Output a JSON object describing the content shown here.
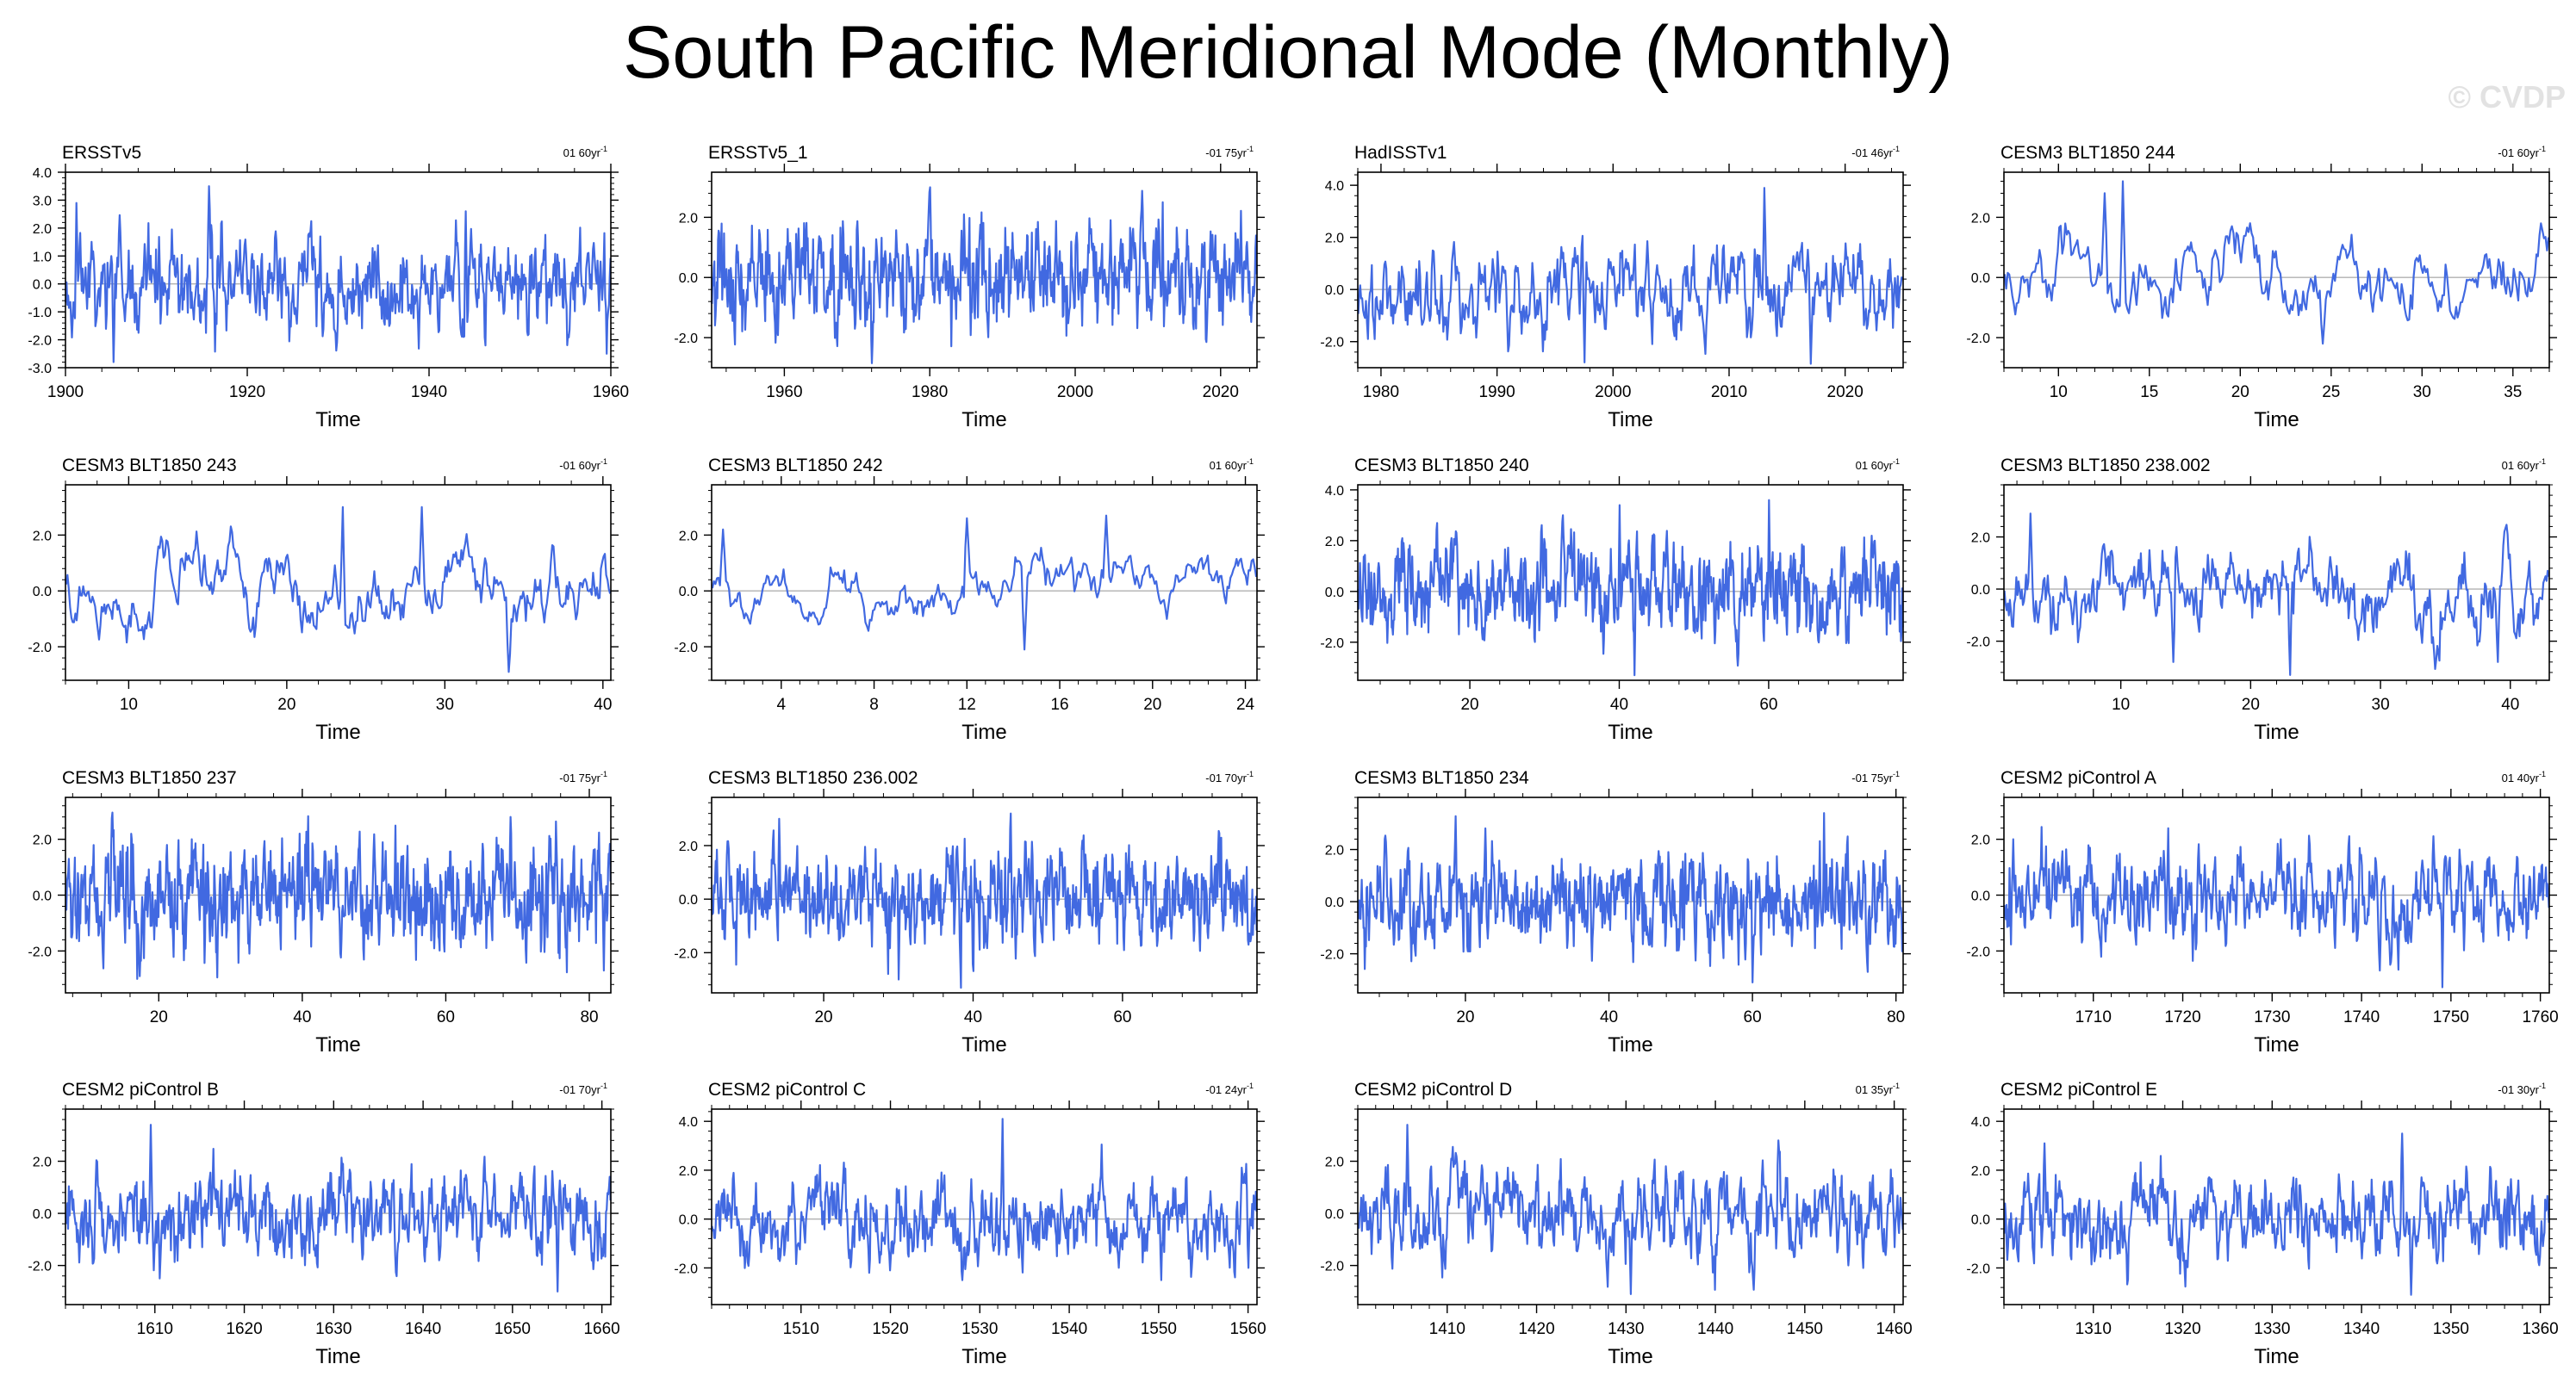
{
  "title": "South Pacific Meridional Mode (Monthly)",
  "watermark": "© CVDP",
  "colors": {
    "line": "#4169e1",
    "axis": "#000000",
    "zero_line": "#b0b0b0",
    "background": "#ffffff"
  },
  "chart_data": [
    {
      "type": "line",
      "name": "ERSSTv5",
      "trend": "01 60yr",
      "xlabel": "Time",
      "xlim": [
        1900,
        1960
      ],
      "xticks": [
        1900,
        1920,
        1940,
        1960
      ],
      "xtick_labels": [
        "1900",
        "1920",
        "1940",
        "1960"
      ],
      "ylim": [
        -3.0,
        4.0
      ],
      "yticks": [
        -3,
        -2,
        -1,
        0,
        1,
        2,
        3,
        4
      ],
      "ytick_labels": [
        "-3.0",
        "-2.0",
        "-1.0",
        "0.0",
        "1.0",
        "2.0",
        "3.0",
        "4.0"
      ],
      "seed": 11,
      "corr": 0.6,
      "amp": 0.85,
      "anchors": [
        [
          1901.2,
          2.9
        ],
        [
          1905.3,
          -2.8
        ],
        [
          1915.8,
          3.5
        ],
        [
          1928,
          1.7
        ],
        [
          1944,
          2.6
        ],
        [
          1959.5,
          -2.5
        ]
      ]
    },
    {
      "type": "line",
      "name": "ERSSTv5_1",
      "trend": "-01 75yr",
      "xlabel": "Time",
      "xlim": [
        1950,
        2025
      ],
      "xticks": [
        1960,
        1980,
        2000,
        2020
      ],
      "xtick_labels": [
        "1960",
        "1980",
        "2000",
        "2020"
      ],
      "ylim": [
        -3.0,
        3.5
      ],
      "yticks": [
        -2,
        0,
        2
      ],
      "ytick_labels": [
        "-2.0",
        "0.0",
        "2.0"
      ],
      "seed": 12,
      "corr": 0.6,
      "amp": 0.9,
      "anchors": [
        [
          1972,
          -3.0
        ],
        [
          1980,
          3.0
        ],
        [
          2012,
          2.5
        ]
      ]
    },
    {
      "type": "line",
      "name": "HadISSTv1",
      "trend": "-01 46yr",
      "xlabel": "Time",
      "xlim": [
        1978,
        2025
      ],
      "xticks": [
        1980,
        1990,
        2000,
        2010,
        2020
      ],
      "xtick_labels": [
        "1980",
        "1990",
        "2000",
        "2010",
        "2020"
      ],
      "ylim": [
        -3.0,
        4.5
      ],
      "yticks": [
        -2,
        0,
        2,
        4
      ],
      "ytick_labels": [
        "-2.0",
        "0.0",
        "2.0",
        "4.0"
      ],
      "seed": 13,
      "corr": 0.7,
      "amp": 0.9,
      "anchors": [
        [
          1997.5,
          -2.8
        ],
        [
          2013,
          3.9
        ],
        [
          2017,
          -2.9
        ]
      ]
    },
    {
      "type": "line",
      "name": "CESM3 BLT1850 244",
      "trend": "-01 60yr",
      "xlabel": "Time",
      "xlim": [
        7,
        37
      ],
      "xticks": [
        10,
        15,
        20,
        25,
        30,
        35
      ],
      "xtick_labels": [
        "10",
        "15",
        "20",
        "25",
        "30",
        "35"
      ],
      "ylim": [
        -3.0,
        3.5
      ],
      "yticks": [
        -2,
        0,
        2
      ],
      "ytick_labels": [
        "-2.0",
        "0.0",
        "2.0"
      ],
      "seed": 14,
      "corr": 0.88,
      "amp": 0.8,
      "anchors": [
        [
          12.5,
          2.8
        ],
        [
          13.5,
          3.2
        ],
        [
          24.5,
          -2.2
        ],
        [
          36.5,
          1.8
        ]
      ]
    },
    {
      "type": "line",
      "name": "CESM3 BLT1850 243",
      "trend": "-01 60yr",
      "xlabel": "Time",
      "xlim": [
        6,
        40.5
      ],
      "xticks": [
        10,
        20,
        30,
        40
      ],
      "xtick_labels": [
        "10",
        "20",
        "30",
        "40"
      ],
      "ylim": [
        -3.2,
        3.8
      ],
      "yticks": [
        -2,
        0,
        2
      ],
      "ytick_labels": [
        "-2.0",
        "0.0",
        "2.0"
      ],
      "seed": 21,
      "corr": 0.88,
      "amp": 0.8,
      "anchors": [
        [
          23.5,
          3.0
        ],
        [
          28.5,
          3.0
        ],
        [
          34,
          -2.9
        ]
      ]
    },
    {
      "type": "line",
      "name": "CESM3 BLT1850 242",
      "trend": "01 60yr",
      "xlabel": "Time",
      "xlim": [
        1,
        24.5
      ],
      "xticks": [
        4,
        8,
        12,
        16,
        20,
        24
      ],
      "xtick_labels": [
        "4",
        "8",
        "12",
        "16",
        "20",
        "24"
      ],
      "ylim": [
        -3.2,
        3.8
      ],
      "yticks": [
        -2,
        0,
        2
      ],
      "ytick_labels": [
        "-2.0",
        "0.0",
        "2.0"
      ],
      "seed": 22,
      "corr": 0.93,
      "amp": 0.7,
      "anchors": [
        [
          1.5,
          2.2
        ],
        [
          12,
          2.6
        ],
        [
          18,
          2.7
        ],
        [
          14.5,
          -2.1
        ]
      ]
    },
    {
      "type": "line",
      "name": "CESM3 BLT1850 240",
      "trend": "01 60yr",
      "xlabel": "Time",
      "xlim": [
        5,
        78
      ],
      "xticks": [
        20,
        40,
        60
      ],
      "xtick_labels": [
        "20",
        "40",
        "60"
      ],
      "ylim": [
        -3.5,
        4.2
      ],
      "yticks": [
        -2,
        0,
        2,
        4
      ],
      "ytick_labels": [
        "-2.0",
        "0.0",
        "2.0",
        "4.0"
      ],
      "seed": 23,
      "corr": 0.6,
      "amp": 0.95,
      "anchors": [
        [
          40,
          3.4
        ],
        [
          42,
          -3.3
        ],
        [
          60,
          3.6
        ]
      ]
    },
    {
      "type": "line",
      "name": "CESM3 BLT1850 238.002",
      "trend": "01 60yr",
      "xlabel": "Time",
      "xlim": [
        1,
        43
      ],
      "xticks": [
        10,
        20,
        30,
        40
      ],
      "xtick_labels": [
        "10",
        "20",
        "30",
        "40"
      ],
      "ylim": [
        -3.5,
        4.0
      ],
      "yticks": [
        -2,
        0,
        2
      ],
      "ytick_labels": [
        "-2.0",
        "0.0",
        "2.0"
      ],
      "seed": 24,
      "corr": 0.75,
      "amp": 0.85,
      "anchors": [
        [
          3,
          2.9
        ],
        [
          14,
          -2.8
        ],
        [
          23,
          -3.3
        ],
        [
          39,
          -2.8
        ]
      ]
    },
    {
      "type": "line",
      "name": "CESM3 BLT1850 237",
      "trend": "-01 75yr",
      "xlabel": "Time",
      "xlim": [
        7,
        83
      ],
      "xticks": [
        20,
        40,
        60,
        80
      ],
      "xtick_labels": [
        "20",
        "40",
        "60",
        "80"
      ],
      "ylim": [
        -3.5,
        3.5
      ],
      "yticks": [
        -2,
        0,
        2
      ],
      "ytick_labels": [
        "-2.0",
        "0.0",
        "2.0"
      ],
      "seed": 31,
      "corr": 0.55,
      "amp": 1.0,
      "anchors": [
        [
          17,
          -3.0
        ],
        [
          69,
          2.8
        ],
        [
          82,
          -2.7
        ]
      ]
    },
    {
      "type": "line",
      "name": "CESM3 BLT1850 236.002",
      "trend": "-01 70yr",
      "xlabel": "Time",
      "xlim": [
        5,
        78
      ],
      "xticks": [
        20,
        40,
        60
      ],
      "xtick_labels": [
        "20",
        "40",
        "60"
      ],
      "ylim": [
        -3.5,
        3.8
      ],
      "yticks": [
        -2,
        0,
        2
      ],
      "ytick_labels": [
        "-2.0",
        "0.0",
        "2.0"
      ],
      "seed": 32,
      "corr": 0.6,
      "amp": 0.95,
      "anchors": [
        [
          14,
          3.0
        ],
        [
          45,
          3.2
        ],
        [
          30,
          -3.0
        ]
      ]
    },
    {
      "type": "line",
      "name": "CESM3 BLT1850 234",
      "trend": "-01 75yr",
      "xlabel": "Time",
      "xlim": [
        5,
        81
      ],
      "xticks": [
        20,
        40,
        60,
        80
      ],
      "xtick_labels": [
        "20",
        "40",
        "60",
        "80"
      ],
      "ylim": [
        -3.5,
        4.0
      ],
      "yticks": [
        -2,
        0,
        2
      ],
      "ytick_labels": [
        "-2.0",
        "0.0",
        "2.0"
      ],
      "seed": 33,
      "corr": 0.6,
      "amp": 0.95,
      "anchors": [
        [
          70,
          3.4
        ],
        [
          60,
          -3.1
        ]
      ]
    },
    {
      "type": "line",
      "name": "CESM2 piControl A",
      "trend": "01 40yr",
      "xlabel": "Time",
      "xlim": [
        1700,
        1761
      ],
      "xticks": [
        1710,
        1720,
        1730,
        1740,
        1750,
        1760
      ],
      "xtick_labels": [
        "1710",
        "1720",
        "1730",
        "1740",
        "1750",
        "1760"
      ],
      "ylim": [
        -3.5,
        3.5
      ],
      "yticks": [
        -2,
        0,
        2
      ],
      "ytick_labels": [
        "-2.0",
        "0.0",
        "2.0"
      ],
      "seed": 34,
      "corr": 0.65,
      "amp": 0.9,
      "anchors": [
        [
          1701,
          2.0
        ],
        [
          1742,
          -2.7
        ],
        [
          1749,
          -3.3
        ]
      ]
    },
    {
      "type": "line",
      "name": "CESM2 piControl B",
      "trend": "-01 70yr",
      "xlabel": "Time",
      "xlim": [
        1600,
        1661
      ],
      "xticks": [
        1610,
        1620,
        1630,
        1640,
        1650,
        1660
      ],
      "xtick_labels": [
        "1610",
        "1620",
        "1630",
        "1640",
        "1650",
        "1660"
      ],
      "ylim": [
        -3.5,
        4.0
      ],
      "yticks": [
        -2,
        0,
        2
      ],
      "ytick_labels": [
        "-2.0",
        "0.0",
        "2.0"
      ],
      "seed": 41,
      "corr": 0.7,
      "amp": 0.9,
      "anchors": [
        [
          1609.5,
          3.4
        ],
        [
          1610.5,
          -2.5
        ],
        [
          1655,
          -3.0
        ]
      ]
    },
    {
      "type": "line",
      "name": "CESM2 piControl C",
      "trend": "-01 24yr",
      "xlabel": "Time",
      "xlim": [
        1500,
        1561
      ],
      "xticks": [
        1510,
        1520,
        1530,
        1540,
        1550,
        1560
      ],
      "xtick_labels": [
        "1510",
        "1520",
        "1530",
        "1540",
        "1550",
        "1560"
      ],
      "ylim": [
        -3.5,
        4.5
      ],
      "yticks": [
        -2,
        0,
        2,
        4
      ],
      "ytick_labels": [
        "-2.0",
        "0.0",
        "2.0",
        "4.0"
      ],
      "seed": 42,
      "corr": 0.7,
      "amp": 0.9,
      "anchors": [
        [
          1532.5,
          4.1
        ],
        [
          1528,
          -2.5
        ],
        [
          1560,
          -2.0
        ]
      ]
    },
    {
      "type": "line",
      "name": "CESM2 piControl D",
      "trend": "01 35yr",
      "xlabel": "Time",
      "xlim": [
        1400,
        1461
      ],
      "xticks": [
        1410,
        1420,
        1430,
        1440,
        1450,
        1460
      ],
      "xtick_labels": [
        "1410",
        "1420",
        "1430",
        "1440",
        "1450",
        "1460"
      ],
      "ylim": [
        -3.5,
        4.0
      ],
      "yticks": [
        -2,
        0,
        2
      ],
      "ytick_labels": [
        "-2.0",
        "0.0",
        "2.0"
      ],
      "seed": 43,
      "corr": 0.7,
      "amp": 0.9,
      "anchors": [
        [
          1405.5,
          3.4
        ],
        [
          1430.5,
          -3.1
        ],
        [
          1447,
          2.8
        ]
      ]
    },
    {
      "type": "line",
      "name": "CESM2 piControl E",
      "trend": "-01 30yr",
      "xlabel": "Time",
      "xlim": [
        1300,
        1361
      ],
      "xticks": [
        1310,
        1320,
        1330,
        1340,
        1350,
        1360
      ],
      "xtick_labels": [
        "1310",
        "1320",
        "1330",
        "1340",
        "1350",
        "1360"
      ],
      "ylim": [
        -3.5,
        4.5
      ],
      "yticks": [
        -2,
        0,
        2,
        4
      ],
      "ytick_labels": [
        "-2.0",
        "0.0",
        "2.0",
        "4.0"
      ],
      "seed": 44,
      "corr": 0.7,
      "amp": 0.9,
      "anchors": [
        [
          1304.5,
          3.1
        ],
        [
          1344.5,
          3.5
        ],
        [
          1345.5,
          -3.1
        ]
      ]
    }
  ]
}
